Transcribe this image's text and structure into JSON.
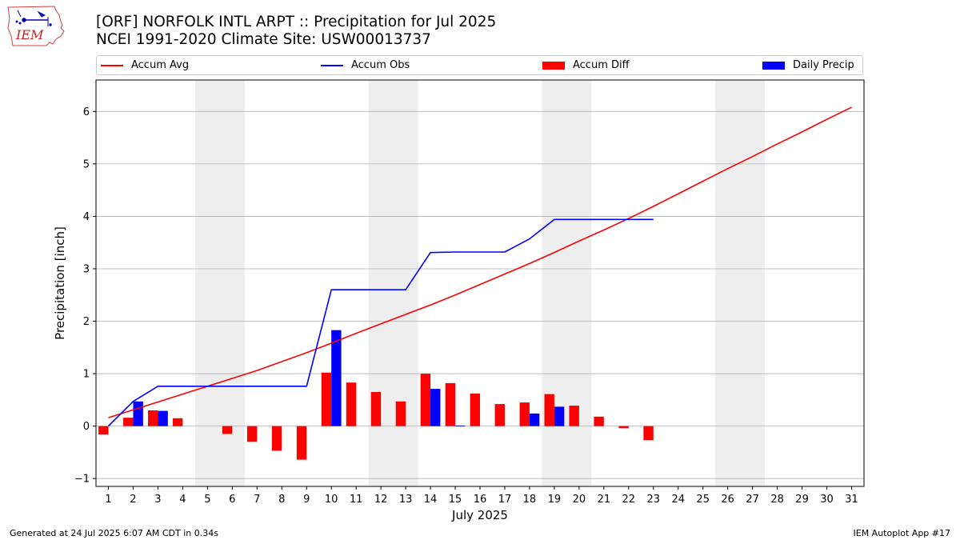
{
  "header": {
    "title_line1": "[ORF] NORFOLK INTL ARPT :: Precipitation for Jul 2025",
    "title_line2": "NCEI 1991-2020 Climate Site: USW00013737",
    "logo_text": "IEM"
  },
  "legend": {
    "accum_avg": "Accum Avg",
    "accum_obs": "Accum Obs",
    "accum_diff": "Accum Diff",
    "daily_precip": "Daily Precip"
  },
  "footer": {
    "generated": "Generated at 24 Jul 2025 6:07 AM CDT in 0.34s",
    "app": "IEM Autoplot App #17"
  },
  "colors": {
    "avg": "#ff0000",
    "obs": "#0000ff",
    "diff": "#ff0000",
    "daily": "#0000ff",
    "weekend_shade": "#eeeeee",
    "grid": "#b0b0b0"
  },
  "chart_data": {
    "type": "bar",
    "xlabel": "July 2025",
    "ylabel": "Precipitation [inch]",
    "xlim": [
      0.5,
      31.5
    ],
    "ylim": [
      -1.15,
      6.6
    ],
    "yticks": [
      -1,
      0,
      1,
      2,
      3,
      4,
      5,
      6
    ],
    "x_ticks": [
      1,
      2,
      3,
      4,
      5,
      6,
      7,
      8,
      9,
      10,
      11,
      12,
      13,
      14,
      15,
      16,
      17,
      18,
      19,
      20,
      21,
      22,
      23,
      24,
      25,
      26,
      27,
      28,
      29,
      30,
      31
    ],
    "grid": "horizontal",
    "legend_position": "top",
    "weekend_spans": [
      [
        4.5,
        6.5
      ],
      [
        11.5,
        13.5
      ],
      [
        18.5,
        20.5
      ],
      [
        25.5,
        27.5
      ]
    ],
    "series": [
      {
        "name": "Accum Avg",
        "kind": "line",
        "x": [
          1,
          2,
          3,
          4,
          5,
          6,
          7,
          8,
          9,
          10,
          11,
          12,
          13,
          14,
          15,
          16,
          17,
          18,
          19,
          20,
          21,
          22,
          23,
          24,
          25,
          26,
          27,
          28,
          29,
          30,
          31
        ],
        "values": [
          0.16,
          0.31,
          0.46,
          0.61,
          0.76,
          0.91,
          1.06,
          1.23,
          1.4,
          1.58,
          1.77,
          1.95,
          2.13,
          2.31,
          2.5,
          2.7,
          2.9,
          3.1,
          3.31,
          3.53,
          3.74,
          3.96,
          4.19,
          4.43,
          4.67,
          4.91,
          5.14,
          5.38,
          5.61,
          5.85,
          6.08
        ]
      },
      {
        "name": "Accum Obs",
        "kind": "line",
        "x": [
          1,
          2,
          3,
          4,
          5,
          6,
          7,
          8,
          9,
          10,
          11,
          12,
          13,
          14,
          15,
          16,
          17,
          18,
          19,
          20,
          21,
          22,
          23
        ],
        "values": [
          0.0,
          0.47,
          0.76,
          0.76,
          0.76,
          0.76,
          0.76,
          0.76,
          0.76,
          2.6,
          2.6,
          2.6,
          2.6,
          3.31,
          3.32,
          3.32,
          3.32,
          3.57,
          3.94,
          3.94,
          3.94,
          3.94,
          3.94
        ]
      },
      {
        "name": "Accum Diff",
        "kind": "bar",
        "x": [
          1,
          2,
          3,
          4,
          5,
          6,
          7,
          8,
          9,
          10,
          11,
          12,
          13,
          14,
          15,
          16,
          17,
          18,
          19,
          20,
          21,
          22,
          23
        ],
        "values": [
          -0.16,
          0.16,
          0.3,
          0.15,
          0.0,
          -0.15,
          -0.3,
          -0.47,
          -0.64,
          1.02,
          0.83,
          0.65,
          0.47,
          1.0,
          0.82,
          0.62,
          0.42,
          0.45,
          0.61,
          0.39,
          0.18,
          -0.04,
          -0.27
        ]
      },
      {
        "name": "Daily Precip",
        "kind": "bar",
        "x": [
          1,
          2,
          3,
          4,
          5,
          6,
          7,
          8,
          9,
          10,
          11,
          12,
          13,
          14,
          15,
          16,
          17,
          18,
          19,
          20,
          21,
          22,
          23
        ],
        "values": [
          0.0,
          0.47,
          0.29,
          0.0,
          0.0,
          0.0,
          0.0,
          0.0,
          0.0,
          1.83,
          0.0,
          0.0,
          0.0,
          0.71,
          0.01,
          0.0,
          0.0,
          0.24,
          0.37,
          0.0,
          0.0,
          0.0,
          0.0
        ]
      }
    ]
  }
}
